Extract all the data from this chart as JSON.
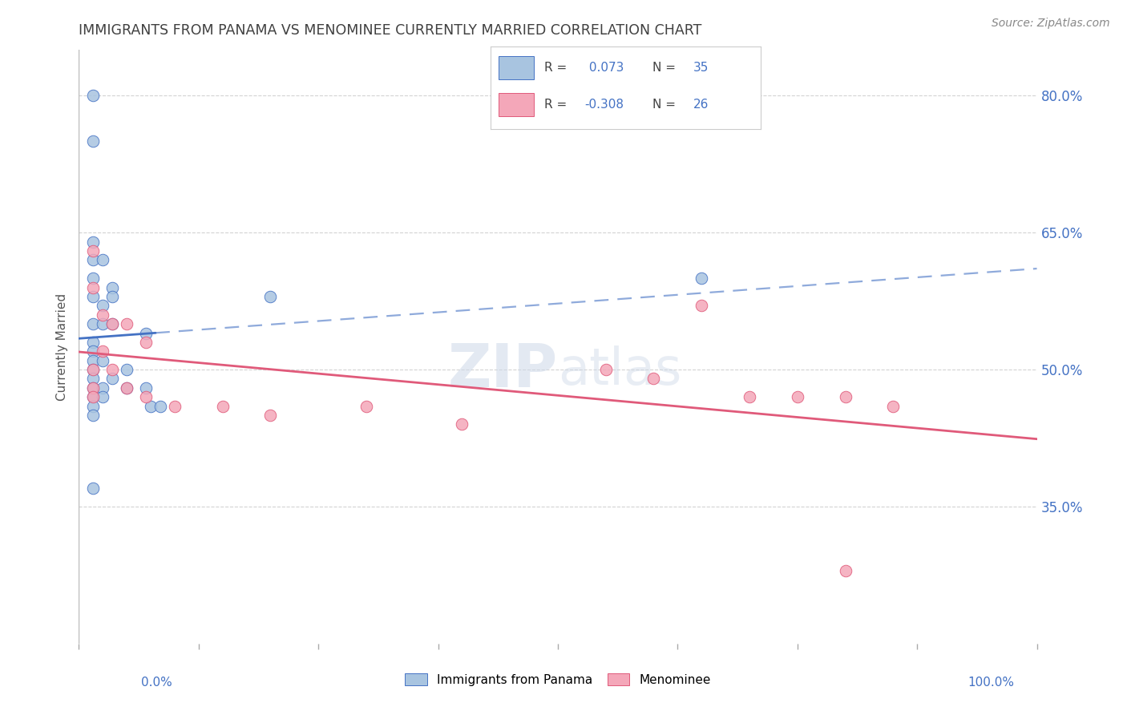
{
  "title": "IMMIGRANTS FROM PANAMA VS MENOMINEE CURRENTLY MARRIED CORRELATION CHART",
  "source": "Source: ZipAtlas.com",
  "ylabel": "Currently Married",
  "legend_label1": "Immigrants from Panama",
  "legend_label2": "Menominee",
  "r1": 0.073,
  "n1": 35,
  "r2": -0.308,
  "n2": 26,
  "color1": "#a8c4e0",
  "color2": "#f4a7b9",
  "line_color1": "#4472c4",
  "line_color2": "#e05a7a",
  "background_color": "#ffffff",
  "grid_color": "#d3d3d3",
  "title_color": "#404040",
  "axis_label_color": "#4472c4",
  "xlim": [
    0.0,
    100.0
  ],
  "ylim": [
    20.0,
    85.0
  ],
  "yticks": [
    35.0,
    50.0,
    65.0,
    80.0
  ],
  "xtick_count": 8,
  "panama_x": [
    1.5,
    1.5,
    1.5,
    1.5,
    1.5,
    1.5,
    1.5,
    1.5,
    1.5,
    1.5,
    1.5,
    1.5,
    1.5,
    1.5,
    2.5,
    2.5,
    2.5,
    2.5,
    2.5,
    2.5,
    3.5,
    3.5,
    3.5,
    3.5,
    5.0,
    5.0,
    7.0,
    7.0,
    7.5,
    8.5,
    20.0,
    1.5,
    1.5,
    1.5,
    65.0
  ],
  "panama_y": [
    80.0,
    75.0,
    64.0,
    62.0,
    60.0,
    58.0,
    55.0,
    53.0,
    52.0,
    51.0,
    50.0,
    49.0,
    48.0,
    47.0,
    62.0,
    57.0,
    55.0,
    51.0,
    48.0,
    47.0,
    59.0,
    58.0,
    55.0,
    49.0,
    50.0,
    48.0,
    54.0,
    48.0,
    46.0,
    46.0,
    58.0,
    46.0,
    45.0,
    37.0,
    60.0
  ],
  "menominee_x": [
    1.5,
    1.5,
    2.5,
    2.5,
    3.5,
    3.5,
    5.0,
    5.0,
    7.0,
    7.0,
    10.0,
    15.0,
    20.0,
    55.0,
    60.0,
    65.0,
    70.0,
    75.0,
    80.0,
    85.0,
    30.0,
    40.0,
    1.5,
    1.5,
    1.5,
    80.0
  ],
  "menominee_y": [
    63.0,
    59.0,
    56.0,
    52.0,
    55.0,
    50.0,
    55.0,
    48.0,
    53.0,
    47.0,
    46.0,
    46.0,
    45.0,
    50.0,
    49.0,
    57.0,
    47.0,
    47.0,
    47.0,
    46.0,
    46.0,
    44.0,
    50.0,
    48.0,
    47.0,
    28.0
  ],
  "solid_end_x": 8.0,
  "watermark_text": "ZIPatlas",
  "watermark_zip_color": "#c8d8eb",
  "watermark_atlas_color": "#c8d8eb"
}
